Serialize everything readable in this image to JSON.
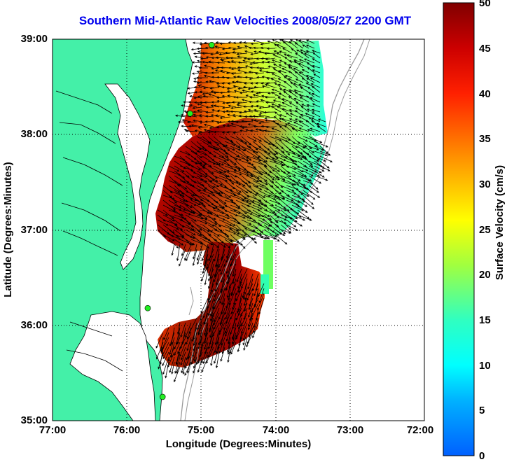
{
  "title": "Southern Mid-Atlantic Raw Velocities 2008/05/27 2200 GMT",
  "x_axis": {
    "label": "Longitude (Degrees:Minutes)",
    "ticks": [
      "77:00",
      "76:00",
      "75:00",
      "74:00",
      "73:00",
      "72:00"
    ]
  },
  "y_axis": {
    "label": "Latitude (Degrees:Minutes)",
    "ticks": [
      "39:00",
      "38:00",
      "37:00",
      "36:00",
      "35:00"
    ]
  },
  "colorbar": {
    "label": "Surface Velocity (cm/s)",
    "ticks": [
      "50",
      "45",
      "40",
      "35",
      "30",
      "25",
      "20",
      "15",
      "10",
      "5",
      "0"
    ],
    "range": [
      0,
      50
    ]
  },
  "map_extent": {
    "lon": [
      -77,
      -72
    ],
    "lat": [
      35,
      39
    ]
  },
  "grid": true,
  "colors": {
    "title": "#0000ee",
    "land": "#44f0a8",
    "water": "#ffffff",
    "arrows": "#000000",
    "station": "#22ee22"
  },
  "stations": [
    {
      "lon": -74.86,
      "lat": 38.94
    },
    {
      "lon": -75.15,
      "lat": 38.22
    },
    {
      "lon": -75.72,
      "lat": 36.18
    },
    {
      "lon": -75.52,
      "lat": 35.25
    }
  ]
}
